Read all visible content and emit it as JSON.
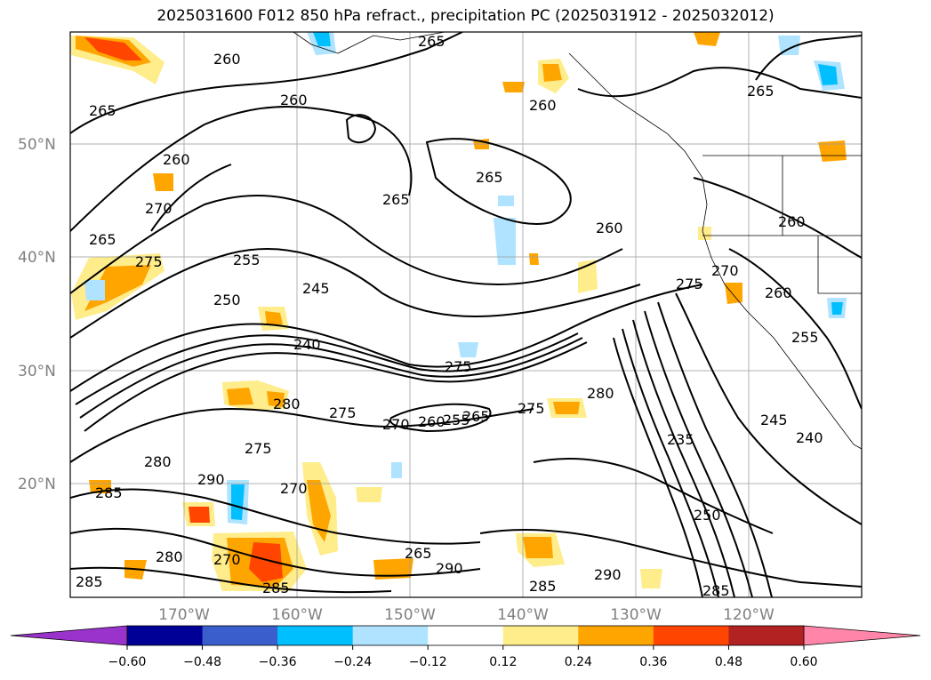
{
  "title": "2025031600 F012 850 hPa refract., precipitation PC (2025031912 - 2025032012)",
  "lat_labels": [
    "50°N",
    "40°N",
    "30°N",
    "20°N"
  ],
  "lon_labels": [
    "170°W",
    "160°W",
    "150°W",
    "140°W",
    "130°W",
    "120°W"
  ],
  "contour_labels": [
    "260",
    "260",
    "260",
    "265",
    "260",
    "270",
    "265",
    "275",
    "260",
    "265",
    "255",
    "250",
    "245",
    "240",
    "275",
    "265",
    "260",
    "265",
    "270",
    "275",
    "260",
    "255",
    "245",
    "240",
    "235",
    "250",
    "265",
    "280",
    "275",
    "270",
    "260",
    "255",
    "265",
    "275",
    "280",
    "290",
    "285",
    "280",
    "275",
    "270",
    "280",
    "285",
    "270",
    "265",
    "285",
    "290",
    "290",
    "285",
    "285"
  ],
  "colorbar": {
    "colors": [
      "#9a33cc",
      "#000096",
      "#3a5fcd",
      "#00bfff",
      "#afe3ff",
      "#ffffff",
      "#ffec8b",
      "#ffa500",
      "#ff4500",
      "#b22222",
      "#ff86a8"
    ],
    "ticks": [
      "−0.60",
      "−0.48",
      "−0.36",
      "−0.24",
      "−0.12",
      "0.12",
      "0.24",
      "0.36",
      "0.48",
      "0.60"
    ]
  }
}
